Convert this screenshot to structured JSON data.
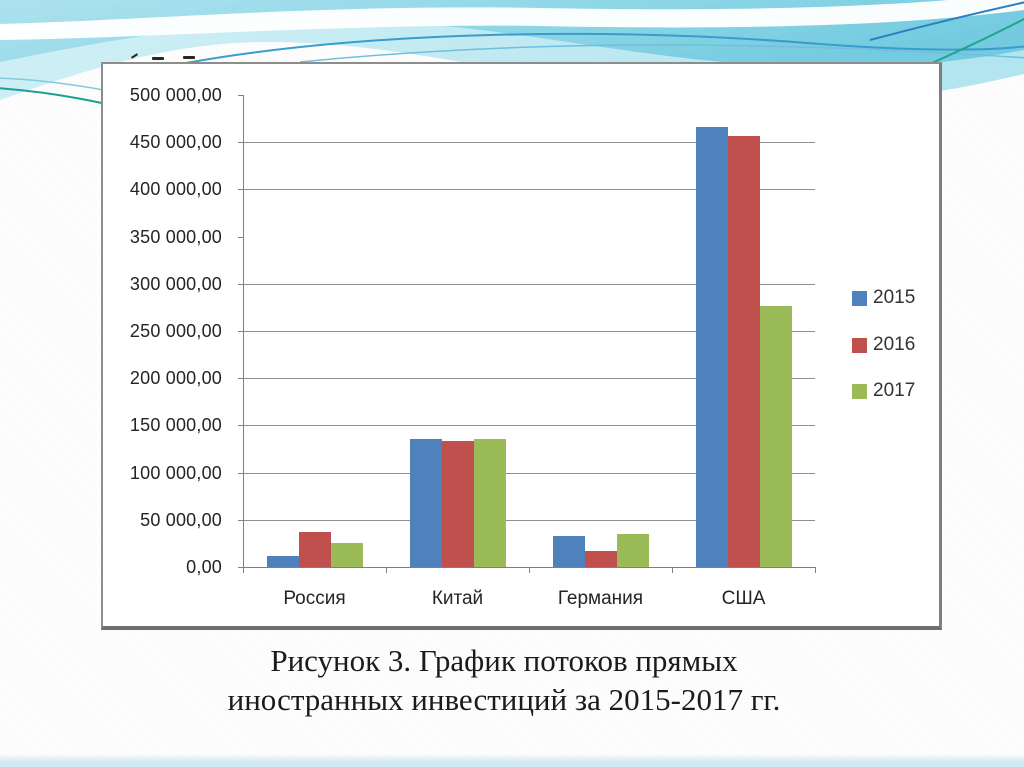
{
  "caption": {
    "lines": [
      "Рисунок 3. График потоков прямых",
      "иностранных инвестиций за 2015-2017 гг."
    ]
  },
  "chart_data": {
    "type": "bar",
    "title": "",
    "xlabel": "",
    "ylabel": "",
    "categories": [
      "Россия",
      "Китай",
      "Германия",
      "США"
    ],
    "series": [
      {
        "name": "2015",
        "color": "#4f81bd",
        "values": [
          12000,
          136000,
          33000,
          466000
        ]
      },
      {
        "name": "2016",
        "color": "#c0504d",
        "values": [
          37000,
          134000,
          17000,
          457000
        ]
      },
      {
        "name": "2017",
        "color": "#9bbb59",
        "values": [
          25000,
          136000,
          35000,
          276000
        ]
      }
    ],
    "ylim": [
      0,
      500000
    ],
    "ytick_labels": [
      "0,00",
      "50 000,00",
      "100 000,00",
      "150 000,00",
      "200 000,00",
      "250 000,00",
      "300 000,00",
      "350 000,00",
      "400 000,00",
      "450 000,00",
      "500 000,00"
    ],
    "gridline_values": [
      50000,
      100000,
      150000,
      200000,
      250000,
      300000,
      400000,
      450000
    ],
    "grid": "horizontal",
    "legend_position": "right",
    "legend": [
      "2015",
      "2016",
      "2017"
    ]
  },
  "theme": {
    "wave_cyan": "#7fd0e2",
    "wave_light": "#cdeef5",
    "accent_blue": "#2b7fbe",
    "accent_green": "#22a38c"
  }
}
